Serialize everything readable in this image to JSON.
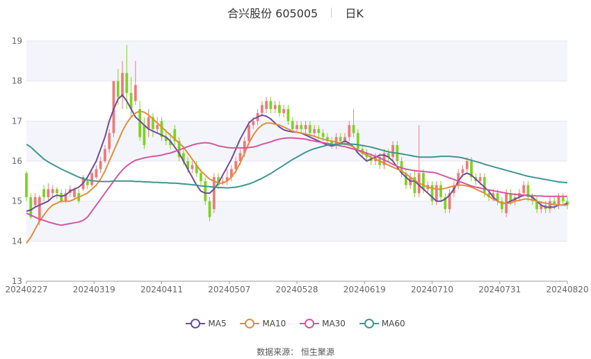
{
  "header": {
    "title": "合兴股份 605005",
    "period": "日K"
  },
  "source_text": "数据来源：  恒生聚源",
  "colors": {
    "up": "#f0797a",
    "down": "#7ed321",
    "ma5": "#6b4c9a",
    "ma10": "#e08e3a",
    "ma30": "#d455a0",
    "ma60": "#3f9492"
  },
  "chart_data": {
    "type": "candlestick",
    "title": "合兴股份 605005 日K",
    "ylim": [
      13,
      19
    ],
    "yticks": [
      13,
      14,
      15,
      16,
      17,
      18,
      19
    ],
    "xtick_labels": [
      "20240227",
      "20240319",
      "20240411",
      "20240507",
      "20240528",
      "20240619",
      "20240710",
      "20240731",
      "20240820"
    ],
    "grid": "horizontal",
    "legend_position": "bottom",
    "candles": [
      [
        15.7,
        15.1,
        15.75,
        15.0
      ],
      [
        15.1,
        14.6,
        15.2,
        14.55
      ],
      [
        14.9,
        15.1,
        15.2,
        14.85
      ],
      [
        14.5,
        15.1,
        15.15,
        14.4
      ],
      [
        15.3,
        15.1,
        15.4,
        15.0
      ],
      [
        15.1,
        15.3,
        15.45,
        15.0
      ],
      [
        15.2,
        15.3,
        15.4,
        15.1
      ],
      [
        15.3,
        15.2,
        15.35,
        15.05
      ],
      [
        15.2,
        15.0,
        15.3,
        14.95
      ],
      [
        15.0,
        15.2,
        15.3,
        14.95
      ],
      [
        15.2,
        15.3,
        15.4,
        15.1
      ],
      [
        15.1,
        15.3,
        15.35,
        15.05
      ],
      [
        15.2,
        15.0,
        15.3,
        14.95
      ],
      [
        15.3,
        15.6,
        15.65,
        15.25
      ],
      [
        15.5,
        15.4,
        15.6,
        15.3
      ],
      [
        15.4,
        15.7,
        15.75,
        15.35
      ],
      [
        15.6,
        15.8,
        15.9,
        15.55
      ],
      [
        15.8,
        16.0,
        16.1,
        15.7
      ],
      [
        16.0,
        16.3,
        16.4,
        15.95
      ],
      [
        16.3,
        16.7,
        16.8,
        16.2
      ],
      [
        16.7,
        18.0,
        18.0,
        16.6
      ],
      [
        18.0,
        17.6,
        18.3,
        17.4
      ],
      [
        17.6,
        18.2,
        18.5,
        17.3
      ],
      [
        18.2,
        17.7,
        18.9,
        17.3
      ],
      [
        17.7,
        17.3,
        18.1,
        17.1
      ],
      [
        17.5,
        17.9,
        18.5,
        17.4
      ],
      [
        17.3,
        16.6,
        17.5,
        16.5
      ],
      [
        16.9,
        16.4,
        17.1,
        16.3
      ],
      [
        16.8,
        17.1,
        17.3,
        16.6
      ],
      [
        17.1,
        16.8,
        17.2,
        16.6
      ],
      [
        16.8,
        16.9,
        17.1,
        16.7
      ],
      [
        17.0,
        16.6,
        17.1,
        16.5
      ],
      [
        16.6,
        16.5,
        16.8,
        16.4
      ],
      [
        16.5,
        16.4,
        16.7,
        16.3
      ],
      [
        16.8,
        16.5,
        16.9,
        16.4
      ],
      [
        16.5,
        16.1,
        16.6,
        16.0
      ],
      [
        16.2,
        16.0,
        16.3,
        15.9
      ],
      [
        16.0,
        15.8,
        16.1,
        15.7
      ],
      [
        15.8,
        15.9,
        16.0,
        15.7
      ],
      [
        15.9,
        15.7,
        16.0,
        15.6
      ],
      [
        15.7,
        15.5,
        15.8,
        15.4
      ],
      [
        15.5,
        15.0,
        15.6,
        14.9
      ],
      [
        15.0,
        14.6,
        15.1,
        14.5
      ],
      [
        14.8,
        15.6,
        15.7,
        14.7
      ],
      [
        15.6,
        15.4,
        15.7,
        15.3
      ],
      [
        15.5,
        15.5,
        15.6,
        15.4
      ],
      [
        15.5,
        15.6,
        15.8,
        15.4
      ],
      [
        15.6,
        15.8,
        15.9,
        15.5
      ],
      [
        15.8,
        16.0,
        16.1,
        15.7
      ],
      [
        16.0,
        16.2,
        16.3,
        15.9
      ],
      [
        16.2,
        16.5,
        16.6,
        16.1
      ],
      [
        16.5,
        16.9,
        17.0,
        16.4
      ],
      [
        16.9,
        17.0,
        17.1,
        16.8
      ],
      [
        17.0,
        17.2,
        17.3,
        16.9
      ],
      [
        17.2,
        17.4,
        17.5,
        17.1
      ],
      [
        17.3,
        17.5,
        17.6,
        17.2
      ],
      [
        17.5,
        17.3,
        17.6,
        17.2
      ],
      [
        17.3,
        17.4,
        17.5,
        17.2
      ],
      [
        17.4,
        17.2,
        17.5,
        17.1
      ],
      [
        17.2,
        17.3,
        17.4,
        17.1
      ],
      [
        17.3,
        17.0,
        17.4,
        16.9
      ],
      [
        17.0,
        16.8,
        17.1,
        16.7
      ],
      [
        16.8,
        16.9,
        17.0,
        16.7
      ],
      [
        16.9,
        16.8,
        17.0,
        16.7
      ],
      [
        16.8,
        16.9,
        17.0,
        16.7
      ],
      [
        16.9,
        16.7,
        17.0,
        16.6
      ],
      [
        16.7,
        16.8,
        16.9,
        16.6
      ],
      [
        16.8,
        16.7,
        16.9,
        16.6
      ],
      [
        16.7,
        16.6,
        16.8,
        16.5
      ],
      [
        16.6,
        16.5,
        16.7,
        16.4
      ],
      [
        16.5,
        16.4,
        16.6,
        16.3
      ],
      [
        16.4,
        16.6,
        16.7,
        16.3
      ],
      [
        16.6,
        16.5,
        16.7,
        16.4
      ],
      [
        16.5,
        16.6,
        16.7,
        16.4
      ],
      [
        16.6,
        16.9,
        17.0,
        16.5
      ],
      [
        16.9,
        16.7,
        17.3,
        16.6
      ],
      [
        16.7,
        16.3,
        16.8,
        16.2
      ],
      [
        16.3,
        16.2,
        16.4,
        16.1
      ],
      [
        16.2,
        16.1,
        16.3,
        16.0
      ],
      [
        16.1,
        16.0,
        16.2,
        15.9
      ],
      [
        16.0,
        16.1,
        16.2,
        15.9
      ],
      [
        16.1,
        15.9,
        16.2,
        15.8
      ],
      [
        15.9,
        16.2,
        16.3,
        15.8
      ],
      [
        16.2,
        16.1,
        16.3,
        16.0
      ],
      [
        16.1,
        16.4,
        16.5,
        16.0
      ],
      [
        16.4,
        16.0,
        16.5,
        15.9
      ],
      [
        16.0,
        15.7,
        16.1,
        15.6
      ],
      [
        15.7,
        15.4,
        15.8,
        15.3
      ],
      [
        15.4,
        15.6,
        15.7,
        15.3
      ],
      [
        15.6,
        15.2,
        15.8,
        15.1
      ],
      [
        15.2,
        15.7,
        16.9,
        15.1
      ],
      [
        15.7,
        15.3,
        15.8,
        15.2
      ],
      [
        15.3,
        15.4,
        15.5,
        15.2
      ],
      [
        15.4,
        15.0,
        15.5,
        14.9
      ],
      [
        15.0,
        15.4,
        15.5,
        14.9
      ],
      [
        15.4,
        15.1,
        15.5,
        15.0
      ],
      [
        15.1,
        14.8,
        15.2,
        14.7
      ],
      [
        14.8,
        15.2,
        15.3,
        14.7
      ],
      [
        15.2,
        15.4,
        15.5,
        15.1
      ],
      [
        15.4,
        15.7,
        15.8,
        15.3
      ],
      [
        15.7,
        15.8,
        15.9,
        15.6
      ],
      [
        15.8,
        16.0,
        16.1,
        15.7
      ],
      [
        16.0,
        15.6,
        16.1,
        15.5
      ],
      [
        15.6,
        15.5,
        15.7,
        15.4
      ],
      [
        15.5,
        15.6,
        15.7,
        15.4
      ],
      [
        15.6,
        15.2,
        15.7,
        15.1
      ],
      [
        15.2,
        15.1,
        15.3,
        15.0
      ],
      [
        15.1,
        15.2,
        15.3,
        15.0
      ],
      [
        15.2,
        15.0,
        15.3,
        14.9
      ],
      [
        15.0,
        14.8,
        15.1,
        14.7
      ],
      [
        14.7,
        15.2,
        15.3,
        14.6
      ],
      [
        15.2,
        15.0,
        15.3,
        14.9
      ],
      [
        15.0,
        15.1,
        15.2,
        14.9
      ],
      [
        15.1,
        15.2,
        15.3,
        15.0
      ],
      [
        15.2,
        15.4,
        15.5,
        15.1
      ],
      [
        15.4,
        15.1,
        15.5,
        15.0
      ],
      [
        15.1,
        15.0,
        15.2,
        14.9
      ],
      [
        15.0,
        14.8,
        15.1,
        14.7
      ],
      [
        14.8,
        14.9,
        15.0,
        14.7
      ],
      [
        14.9,
        14.8,
        15.0,
        14.7
      ],
      [
        14.8,
        15.0,
        15.1,
        14.7
      ],
      [
        15.0,
        14.9,
        15.1,
        14.8
      ],
      [
        14.9,
        15.1,
        15.2,
        14.8
      ],
      [
        15.1,
        15.0,
        15.2,
        14.9
      ],
      [
        15.0,
        14.9,
        15.1,
        14.8
      ]
    ],
    "series": [
      {
        "name": "MA5",
        "values": [
          14.75,
          14.78,
          14.85,
          14.9,
          14.95,
          15.0,
          15.1,
          15.15,
          15.12,
          15.15,
          15.25,
          15.3,
          15.35,
          15.45,
          15.6,
          15.8,
          16.0,
          16.3,
          16.6,
          17.0,
          17.3,
          17.55,
          17.65,
          17.5,
          17.3,
          17.1,
          17.0,
          16.9,
          16.8,
          16.75,
          16.7,
          16.65,
          16.6,
          16.5,
          16.35,
          16.2,
          16.0,
          15.8,
          15.6,
          15.4,
          15.25,
          15.2,
          15.2,
          15.3,
          15.45,
          15.65,
          15.85,
          16.05,
          16.3,
          16.55,
          16.75,
          16.95,
          17.05,
          17.1,
          17.15,
          17.12,
          17.05,
          16.95,
          16.85,
          16.78,
          16.75,
          16.73,
          16.72,
          16.7,
          16.65,
          16.6,
          16.55,
          16.5,
          16.45,
          16.4,
          16.38,
          16.4,
          16.45,
          16.5,
          16.45,
          16.35,
          16.2,
          16.1,
          16.0,
          16.05,
          16.1,
          16.15,
          16.15,
          16.1,
          16.0,
          15.85,
          15.7,
          15.6,
          15.5,
          15.5,
          15.4,
          15.3,
          15.2,
          15.1,
          15.0,
          15.0,
          15.05,
          15.15,
          15.3,
          15.5,
          15.65,
          15.7,
          15.65,
          15.55,
          15.45,
          15.35,
          15.25,
          15.1,
          15.0,
          14.95,
          14.95,
          15.0,
          15.05,
          15.1,
          15.15,
          15.15,
          15.1,
          15.0,
          14.9,
          14.85,
          14.85,
          14.85,
          14.9,
          14.9,
          14.95
        ]
      },
      {
        "name": "MA10",
        "values": [
          13.95,
          14.1,
          14.3,
          14.5,
          14.65,
          14.8,
          14.9,
          14.95,
          15.0,
          15.0,
          15.0,
          15.05,
          15.1,
          15.15,
          15.2,
          15.3,
          15.4,
          15.55,
          15.75,
          16.0,
          16.25,
          16.5,
          16.75,
          16.95,
          17.1,
          17.2,
          17.25,
          17.22,
          17.15,
          17.05,
          16.95,
          16.85,
          16.75,
          16.65,
          16.55,
          16.45,
          16.35,
          16.2,
          16.05,
          15.9,
          15.75,
          15.65,
          15.55,
          15.5,
          15.45,
          15.45,
          15.5,
          15.6,
          15.75,
          15.95,
          16.2,
          16.45,
          16.65,
          16.8,
          16.9,
          16.95,
          16.95,
          16.92,
          16.9,
          16.85,
          16.8,
          16.75,
          16.72,
          16.7,
          16.68,
          16.65,
          16.62,
          16.58,
          16.55,
          16.52,
          16.5,
          16.48,
          16.45,
          16.42,
          16.4,
          16.35,
          16.28,
          16.2,
          16.15,
          16.1,
          16.05,
          16.0,
          15.95,
          15.9,
          15.85,
          15.8,
          15.75,
          15.68,
          15.6,
          15.52,
          15.45,
          15.4,
          15.35,
          15.32,
          15.3,
          15.3,
          15.32,
          15.35,
          15.38,
          15.4,
          15.4,
          15.38,
          15.35,
          15.3,
          15.25,
          15.2,
          15.12,
          15.05,
          15.0,
          14.95,
          14.95,
          14.95,
          15.0,
          15.02,
          15.05,
          15.05,
          15.03,
          15.0,
          14.97,
          14.95,
          14.93,
          14.92,
          14.9,
          14.9,
          14.9
        ]
      },
      {
        "name": "MA30",
        "values": [
          14.7,
          14.65,
          14.6,
          14.55,
          14.52,
          14.48,
          14.45,
          14.42,
          14.4,
          14.42,
          14.44,
          14.46,
          14.48,
          14.52,
          14.6,
          14.75,
          14.9,
          15.05,
          15.2,
          15.35,
          15.5,
          15.65,
          15.78,
          15.88,
          15.96,
          16.02,
          16.05,
          16.08,
          16.1,
          16.12,
          16.13,
          16.15,
          16.18,
          16.2,
          16.24,
          16.28,
          16.32,
          16.36,
          16.4,
          16.43,
          16.45,
          16.46,
          16.45,
          16.42,
          16.38,
          16.36,
          16.34,
          16.33,
          16.33,
          16.33,
          16.33,
          16.34,
          16.35,
          16.38,
          16.42,
          16.45,
          16.48,
          16.52,
          16.55,
          16.57,
          16.58,
          16.58,
          16.57,
          16.56,
          16.55,
          16.52,
          16.5,
          16.48,
          16.46,
          16.44,
          16.42,
          16.4,
          16.38,
          16.36,
          16.33,
          16.3,
          16.27,
          16.24,
          16.2,
          16.16,
          16.12,
          16.08,
          16.03,
          15.98,
          15.92,
          15.87,
          15.83,
          15.8,
          15.78,
          15.76,
          15.75,
          15.74,
          15.73,
          15.72,
          15.7,
          15.66,
          15.62,
          15.58,
          15.54,
          15.5,
          15.46,
          15.42,
          15.38,
          15.35,
          15.33,
          15.3,
          15.28,
          15.26,
          15.24,
          15.22,
          15.2,
          15.18,
          15.17,
          15.16,
          15.15,
          15.14,
          15.14,
          15.13,
          15.13,
          15.12,
          15.12,
          15.12,
          15.12,
          15.12,
          15.12
        ]
      },
      {
        "name": "MA60",
        "values": [
          16.42,
          16.35,
          16.25,
          16.15,
          16.05,
          15.98,
          15.92,
          15.86,
          15.8,
          15.75,
          15.7,
          15.65,
          15.6,
          15.56,
          15.53,
          15.51,
          15.5,
          15.49,
          15.49,
          15.49,
          15.5,
          15.5,
          15.5,
          15.5,
          15.5,
          15.49,
          15.49,
          15.48,
          15.48,
          15.47,
          15.47,
          15.46,
          15.46,
          15.45,
          15.45,
          15.44,
          15.43,
          15.42,
          15.41,
          15.4,
          15.38,
          15.37,
          15.36,
          15.35,
          15.34,
          15.34,
          15.33,
          15.34,
          15.35,
          15.37,
          15.4,
          15.43,
          15.47,
          15.52,
          15.57,
          15.63,
          15.69,
          15.76,
          15.83,
          15.9,
          15.97,
          16.04,
          16.1,
          16.16,
          16.22,
          16.27,
          16.31,
          16.34,
          16.37,
          16.4,
          16.41,
          16.42,
          16.43,
          16.43,
          16.43,
          16.42,
          16.41,
          16.39,
          16.37,
          16.35,
          16.32,
          16.29,
          16.26,
          16.23,
          16.21,
          16.2,
          16.18,
          16.16,
          16.14,
          16.12,
          16.1,
          16.1,
          16.1,
          16.1,
          16.11,
          16.12,
          16.12,
          16.12,
          16.11,
          16.1,
          16.08,
          16.05,
          16.02,
          15.99,
          15.96,
          15.92,
          15.89,
          15.86,
          15.83,
          15.8,
          15.77,
          15.74,
          15.71,
          15.68,
          15.65,
          15.62,
          15.6,
          15.58,
          15.56,
          15.54,
          15.52,
          15.5,
          15.48,
          15.47,
          15.46
        ]
      }
    ]
  }
}
